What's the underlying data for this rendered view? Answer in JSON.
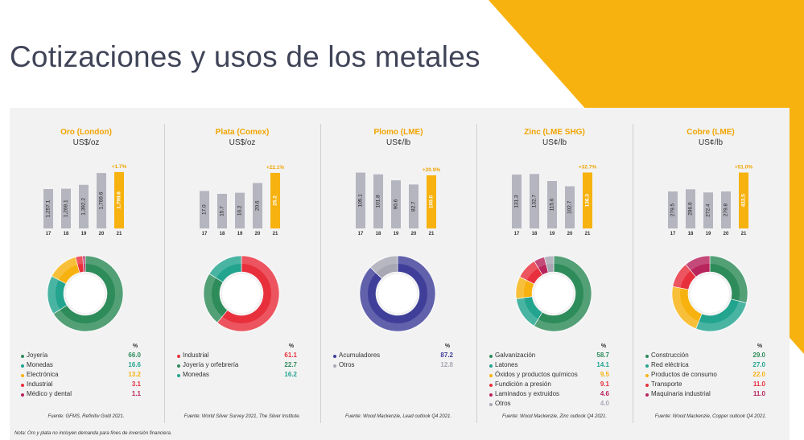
{
  "page": {
    "title": "Cotizaciones y usos de los metales",
    "note": "Nota: Oro y plata no incluyen demanda para fines de inversión financiera.",
    "percent_symbol": "%"
  },
  "colors": {
    "accent": "#f7b20f",
    "bar_gray": "#b5b5c0",
    "title_orange": "#f0a500"
  },
  "chart_data": [
    {
      "type": "bar",
      "title": "Oro (London)",
      "unit": "US$/oz",
      "categories": [
        "17",
        "18",
        "19",
        "20",
        "21"
      ],
      "values": [
        1257.1,
        1269.1,
        1392.2,
        1769.6,
        1799.6
      ],
      "value_labels": [
        "1,257.1",
        "1,269.1",
        "1,392.2",
        "1,769.6",
        "1,799.6"
      ],
      "ylim": [
        0,
        1900
      ],
      "highlight_index": 4,
      "change_label": "+1.7%",
      "uses": {
        "type": "pie",
        "labels": [
          "Joyería",
          "Monedas",
          "Electrónica",
          "Industrial",
          "Médico y dental"
        ],
        "values": [
          66.0,
          16.6,
          13.2,
          3.1,
          1.1
        ],
        "value_labels": [
          "66.0",
          "16.6",
          "13.2",
          "3.1",
          "1.1"
        ],
        "colors": [
          "#2e8b5a",
          "#23a48f",
          "#f7b20f",
          "#e8303c",
          "#b8245c"
        ]
      },
      "source": "Fuente: GFMS, Refinitiv Gold 2021."
    },
    {
      "type": "bar",
      "title": "Plata (Comex)",
      "unit": "US$/oz",
      "categories": [
        "17",
        "18",
        "19",
        "20",
        "21"
      ],
      "values": [
        17.0,
        15.7,
        16.2,
        20.6,
        25.2
      ],
      "value_labels": [
        "17.0",
        "15.7",
        "16.2",
        "20.6",
        "25.2"
      ],
      "ylim": [
        0,
        27
      ],
      "highlight_index": 4,
      "change_label": "+22.1%",
      "uses": {
        "type": "pie",
        "labels": [
          "Industrial",
          "Joyería y orfebrería",
          "Monedas"
        ],
        "values": [
          61.1,
          22.7,
          16.2
        ],
        "value_labels": [
          "61.1",
          "22.7",
          "16.2"
        ],
        "colors": [
          "#e8303c",
          "#2e8b5a",
          "#23a48f"
        ]
      },
      "source": "Fuente: World Silver Survey 2021, The Silver Institute."
    },
    {
      "type": "bar",
      "title": "Plomo (LME)",
      "unit": "US¢/lb",
      "categories": [
        "17",
        "18",
        "19",
        "20",
        "21"
      ],
      "values": [
        105.1,
        101.8,
        90.6,
        82.7,
        100.0
      ],
      "value_labels": [
        "105.1",
        "101.8",
        "90.6",
        "82.7",
        "100.0"
      ],
      "ylim": [
        0,
        112
      ],
      "highlight_index": 4,
      "change_label": "+20.9%",
      "uses": {
        "type": "pie",
        "labels": [
          "Acumuladores",
          "Otros"
        ],
        "values": [
          87.2,
          12.8
        ],
        "value_labels": [
          "87.2",
          "12.8"
        ],
        "colors": [
          "#3f3f9a",
          "#a8a8b4"
        ]
      },
      "source": "Fuente: Wood Mackenzie, Lead outlook Q4 2021."
    },
    {
      "type": "bar",
      "title": "Zinc (LME SHG)",
      "unit": "US¢/lb",
      "categories": [
        "17",
        "18",
        "19",
        "20",
        "21"
      ],
      "values": [
        131.3,
        132.7,
        115.6,
        102.7,
        136.3
      ],
      "value_labels": [
        "131.3",
        "132.7",
        "115.6",
        "102.7",
        "136.3"
      ],
      "ylim": [
        0,
        145
      ],
      "highlight_index": 4,
      "change_label": "+32.7%",
      "uses": {
        "type": "pie",
        "labels": [
          "Galvanización",
          "Latones",
          "Óxidos y productos químicos",
          "Fundición a presión",
          "Laminados y extruidos",
          "Otros"
        ],
        "values": [
          58.7,
          14.1,
          9.5,
          9.1,
          4.6,
          4.0
        ],
        "value_labels": [
          "58.7",
          "14.1",
          "9.5",
          "9.1",
          "4.6",
          "4.0"
        ],
        "colors": [
          "#2e8b5a",
          "#23a48f",
          "#f7b20f",
          "#e8303c",
          "#b8245c",
          "#a8a8b4"
        ]
      },
      "source": "Fuente: Wood Mackenzie, Zinc outlook Q4 2021."
    },
    {
      "type": "bar",
      "title": "Cobre (LME)",
      "unit": "US¢/lb",
      "categories": [
        "17",
        "18",
        "19",
        "20",
        "21"
      ],
      "values": [
        279.5,
        296.0,
        272.4,
        279.8,
        422.5
      ],
      "value_labels": [
        "279.5",
        "296.0",
        "272.4",
        "279.8",
        "422.5"
      ],
      "ylim": [
        0,
        450
      ],
      "highlight_index": 4,
      "change_label": "+51.0%",
      "uses": {
        "type": "pie",
        "labels": [
          "Construcción",
          "Red eléctrica",
          "Productos de consumo",
          "Transporte",
          "Maquinaria industrial"
        ],
        "values": [
          29.0,
          27.0,
          22.0,
          11.0,
          11.0
        ],
        "value_labels": [
          "29.0",
          "27.0",
          "22.0",
          "11.0",
          "11.0"
        ],
        "colors": [
          "#2e8b5a",
          "#23a48f",
          "#f7b20f",
          "#e8303c",
          "#b8245c"
        ]
      },
      "source": "Fuente: Wood Mackenzie, Copper outlook Q4 2021."
    }
  ]
}
